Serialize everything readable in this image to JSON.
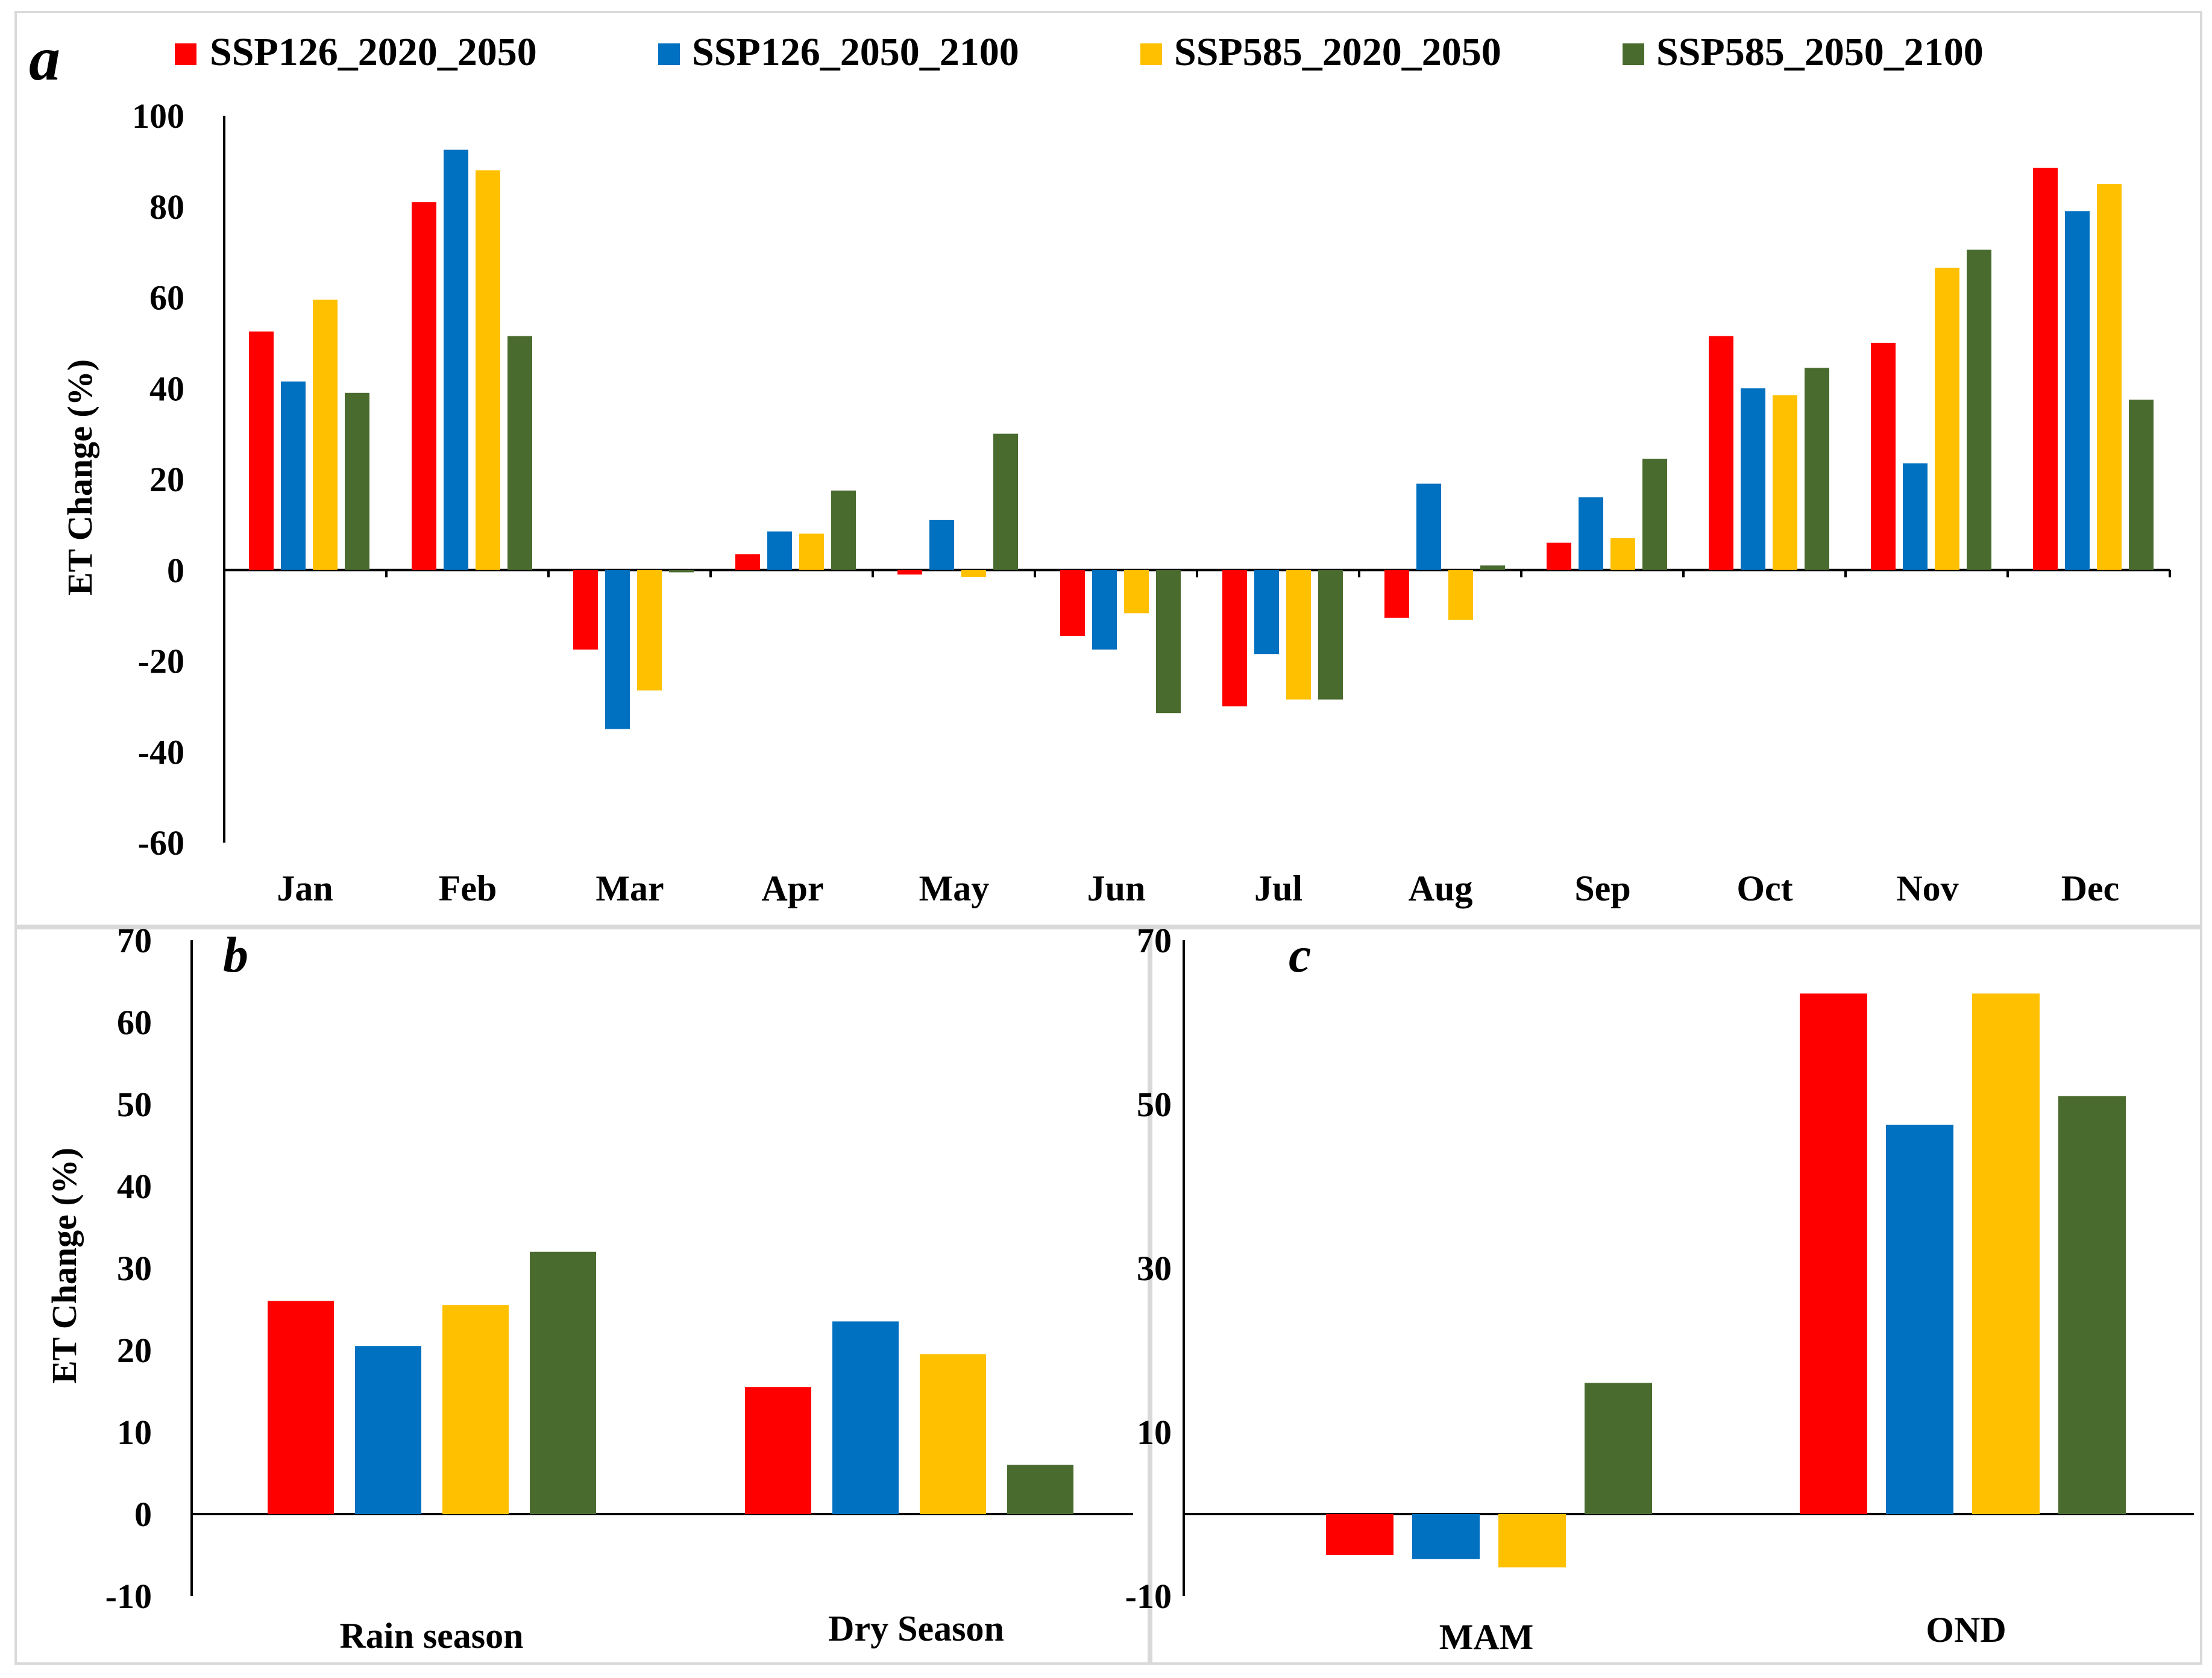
{
  "legend": [
    {
      "name": "SSP126_2020_2050",
      "color": "#ff0000"
    },
    {
      "name": "SSP126_2050_2100",
      "color": "#0070c0"
    },
    {
      "name": "SSP585_2020_2050",
      "color": "#ffc000"
    },
    {
      "name": "SSP585_2050_2100",
      "color": "#4a6b2e"
    }
  ],
  "chart_data": [
    {
      "panel": "a",
      "type": "bar",
      "ylabel": "ET Change (%)",
      "ylim": [
        -60,
        100
      ],
      "yticks": [
        "100",
        "80",
        "60",
        "40",
        "20",
        "0",
        "-20",
        "-40",
        "-60"
      ],
      "categories": [
        "Jan",
        "Feb",
        "Mar",
        "Apr",
        "May",
        "Jun",
        "Jul",
        "Aug",
        "Sep",
        "Oct",
        "Nov",
        "Dec"
      ],
      "series": [
        {
          "name": "SSP126_2020_2050",
          "values": [
            52.5,
            81,
            -17.5,
            3.5,
            -1,
            -14.5,
            -30,
            -10.5,
            6,
            51.5,
            50,
            88.5
          ]
        },
        {
          "name": "SSP126_2050_2100",
          "values": [
            41.5,
            92.5,
            -35,
            8.5,
            11,
            -17.5,
            -18.5,
            19,
            16,
            40,
            23.5,
            79
          ]
        },
        {
          "name": "SSP585_2020_2050",
          "values": [
            59.5,
            88,
            -26.5,
            8,
            -1.5,
            -9.5,
            -28.5,
            -11,
            7,
            38.5,
            66.5,
            85
          ]
        },
        {
          "name": "SSP585_2050_2100",
          "values": [
            39,
            51.5,
            -0.5,
            17.5,
            30,
            -31.5,
            -28.5,
            1,
            24.5,
            44.5,
            70.5,
            37.5
          ]
        }
      ]
    },
    {
      "panel": "b",
      "type": "bar",
      "ylabel": "ET Change (%)",
      "ylim": [
        -10,
        70
      ],
      "yticks": [
        "70",
        "60",
        "50",
        "40",
        "30",
        "20",
        "10",
        "0",
        "-10"
      ],
      "categories": [
        "Rain season",
        "Dry Season"
      ],
      "series": [
        {
          "name": "SSP126_2020_2050",
          "values": [
            26,
            15.5
          ]
        },
        {
          "name": "SSP126_2050_2100",
          "values": [
            20.5,
            23.5
          ]
        },
        {
          "name": "SSP585_2020_2050",
          "values": [
            25.5,
            19.5
          ]
        },
        {
          "name": "SSP585_2050_2100",
          "values": [
            32,
            6
          ]
        }
      ]
    },
    {
      "panel": "c",
      "type": "bar",
      "ylabel": "",
      "ylim": [
        -10,
        70
      ],
      "yticks": [
        "70",
        "50",
        "30",
        "10",
        "-10"
      ],
      "categories": [
        "MAM",
        "OND"
      ],
      "series": [
        {
          "name": "SSP126_2020_2050",
          "values": [
            -5,
            63.5
          ]
        },
        {
          "name": "SSP126_2050_2100",
          "values": [
            -5.5,
            47.5
          ]
        },
        {
          "name": "SSP585_2020_2050",
          "values": [
            -6.5,
            63.5
          ]
        },
        {
          "name": "SSP585_2050_2100",
          "values": [
            16,
            51
          ]
        }
      ]
    }
  ]
}
